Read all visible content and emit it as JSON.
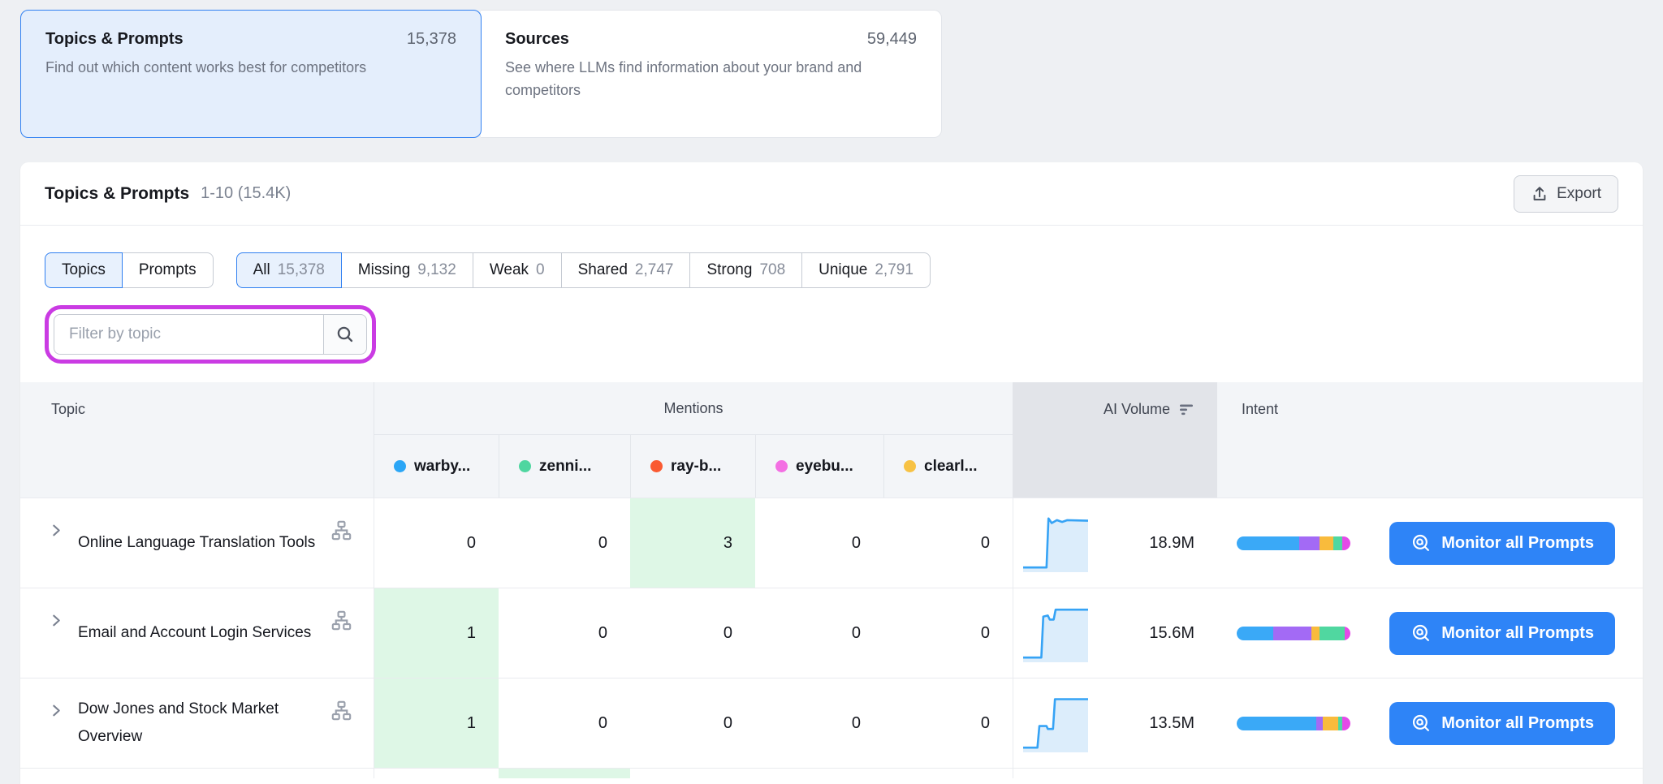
{
  "colors": {
    "accent_blue": "#2e84f7",
    "selected_border": "#2f7ff1",
    "selected_bg": "#e8f1fd",
    "highlight_ring": "#ca3be3",
    "green_cell": "#def7e6",
    "spark_line": "#36a3f5",
    "spark_fill": "#dcedfb",
    "ai_header_bg": "#e2e4e9"
  },
  "cards": [
    {
      "title": "Topics & Prompts",
      "count": "15,378",
      "description": "Find out which content works best for competitors",
      "selected": true
    },
    {
      "title": "Sources",
      "count": "59,449",
      "description": "See where LLMs find information about your brand and competitors",
      "selected": false
    }
  ],
  "panel": {
    "title": "Topics & Prompts",
    "range": "1-10 (15.4K)",
    "export_label": "Export"
  },
  "view_toggle": [
    {
      "label": "Topics",
      "selected": true
    },
    {
      "label": "Prompts",
      "selected": false
    }
  ],
  "filter_tabs": [
    {
      "label": "All",
      "count": "15,378",
      "selected": true
    },
    {
      "label": "Missing",
      "count": "9,132",
      "selected": false
    },
    {
      "label": "Weak",
      "count": "0",
      "selected": false
    },
    {
      "label": "Shared",
      "count": "2,747",
      "selected": false
    },
    {
      "label": "Strong",
      "count": "708",
      "selected": false
    },
    {
      "label": "Unique",
      "count": "2,791",
      "selected": false
    }
  ],
  "search": {
    "placeholder": "Filter by topic"
  },
  "table": {
    "topic_header": "Topic",
    "mentions_header": "Mentions",
    "ai_volume_header": "AI Volume",
    "intent_header": "Intent",
    "monitor_label": "Monitor all Prompts",
    "competitors": [
      {
        "name": "warby...",
        "color": "#2ba6f6"
      },
      {
        "name": "zenni...",
        "color": "#4fd6a0"
      },
      {
        "name": "ray-b...",
        "color": "#fa5a32"
      },
      {
        "name": "eyebu...",
        "color": "#f36fe3"
      },
      {
        "name": "clearl...",
        "color": "#f7c244"
      }
    ],
    "rows": [
      {
        "topic": "Online Language Translation Tools",
        "mentions": [
          "0",
          "0",
          "3",
          "0",
          "0"
        ],
        "highlight": 2,
        "ai_volume": "18.9M",
        "spark": [
          [
            0,
            92
          ],
          [
            36,
            92
          ],
          [
            39,
            8
          ],
          [
            44,
            16
          ],
          [
            52,
            11
          ],
          [
            60,
            14
          ],
          [
            68,
            11
          ],
          [
            100,
            12
          ]
        ],
        "intent": [
          {
            "color": "#3aa9f7",
            "pct": 55
          },
          {
            "color": "#a36af5",
            "pct": 18
          },
          {
            "color": "#f9bb3c",
            "pct": 12
          },
          {
            "color": "#50d7a0",
            "pct": 8
          },
          {
            "color": "#e44ae8",
            "pct": 7
          }
        ]
      },
      {
        "topic": "Email and Account Login Services",
        "mentions": [
          "1",
          "0",
          "0",
          "0",
          "0"
        ],
        "highlight": 0,
        "ai_volume": "15.6M",
        "spark": [
          [
            0,
            92
          ],
          [
            28,
            92
          ],
          [
            31,
            22
          ],
          [
            38,
            20
          ],
          [
            41,
            27
          ],
          [
            47,
            27
          ],
          [
            50,
            10
          ],
          [
            100,
            10
          ]
        ],
        "intent": [
          {
            "color": "#3aa9f7",
            "pct": 32
          },
          {
            "color": "#a36af5",
            "pct": 34
          },
          {
            "color": "#f9bb3c",
            "pct": 7
          },
          {
            "color": "#50d7a0",
            "pct": 22
          },
          {
            "color": "#e44ae8",
            "pct": 5
          }
        ]
      },
      {
        "topic": "Dow Jones and Stock Market Overview",
        "mentions": [
          "1",
          "0",
          "0",
          "0",
          "0"
        ],
        "highlight": 0,
        "ai_volume": "13.5M",
        "spark": [
          [
            0,
            92
          ],
          [
            22,
            92
          ],
          [
            25,
            55
          ],
          [
            36,
            55
          ],
          [
            38,
            60
          ],
          [
            46,
            60
          ],
          [
            49,
            9
          ],
          [
            100,
            9
          ]
        ],
        "intent": [
          {
            "color": "#3aa9f7",
            "pct": 70
          },
          {
            "color": "#a36af5",
            "pct": 6
          },
          {
            "color": "#f9bb3c",
            "pct": 13
          },
          {
            "color": "#50d7a0",
            "pct": 4
          },
          {
            "color": "#e44ae8",
            "pct": 7
          }
        ]
      },
      {
        "topic": "",
        "mentions": [
          "",
          "",
          "",
          "",
          ""
        ],
        "highlight": 1,
        "partial": true
      }
    ]
  }
}
